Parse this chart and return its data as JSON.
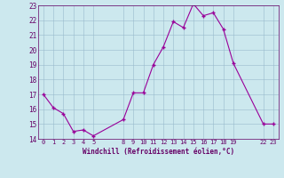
{
  "x": [
    0,
    1,
    2,
    3,
    4,
    5,
    8,
    9,
    10,
    11,
    12,
    13,
    14,
    15,
    16,
    17,
    18,
    19,
    22,
    23
  ],
  "y": [
    17,
    16.1,
    15.7,
    14.5,
    14.6,
    14.2,
    15.3,
    17.1,
    17.1,
    19.0,
    20.2,
    21.9,
    21.5,
    23.1,
    22.3,
    22.5,
    21.4,
    19.1,
    15.0,
    15.0
  ],
  "xticks": [
    0,
    1,
    2,
    3,
    4,
    5,
    8,
    9,
    10,
    11,
    12,
    13,
    14,
    15,
    16,
    17,
    18,
    19,
    22,
    23
  ],
  "xtick_labels": [
    "0",
    "1",
    "2",
    "3",
    "4",
    "5",
    "8",
    "9",
    "10",
    "11",
    "12",
    "13",
    "14",
    "15",
    "16",
    "17",
    "18",
    "19",
    "22",
    "23"
  ],
  "ylim": [
    14,
    23
  ],
  "yticks": [
    14,
    15,
    16,
    17,
    18,
    19,
    20,
    21,
    22,
    23
  ],
  "xlabel": "Windchill (Refroidissement éolien,°C)",
  "line_color": "#990099",
  "marker_color": "#990099",
  "bg_color": "#cce8ee",
  "grid_color": "#99bbcc",
  "font_color": "#660066"
}
